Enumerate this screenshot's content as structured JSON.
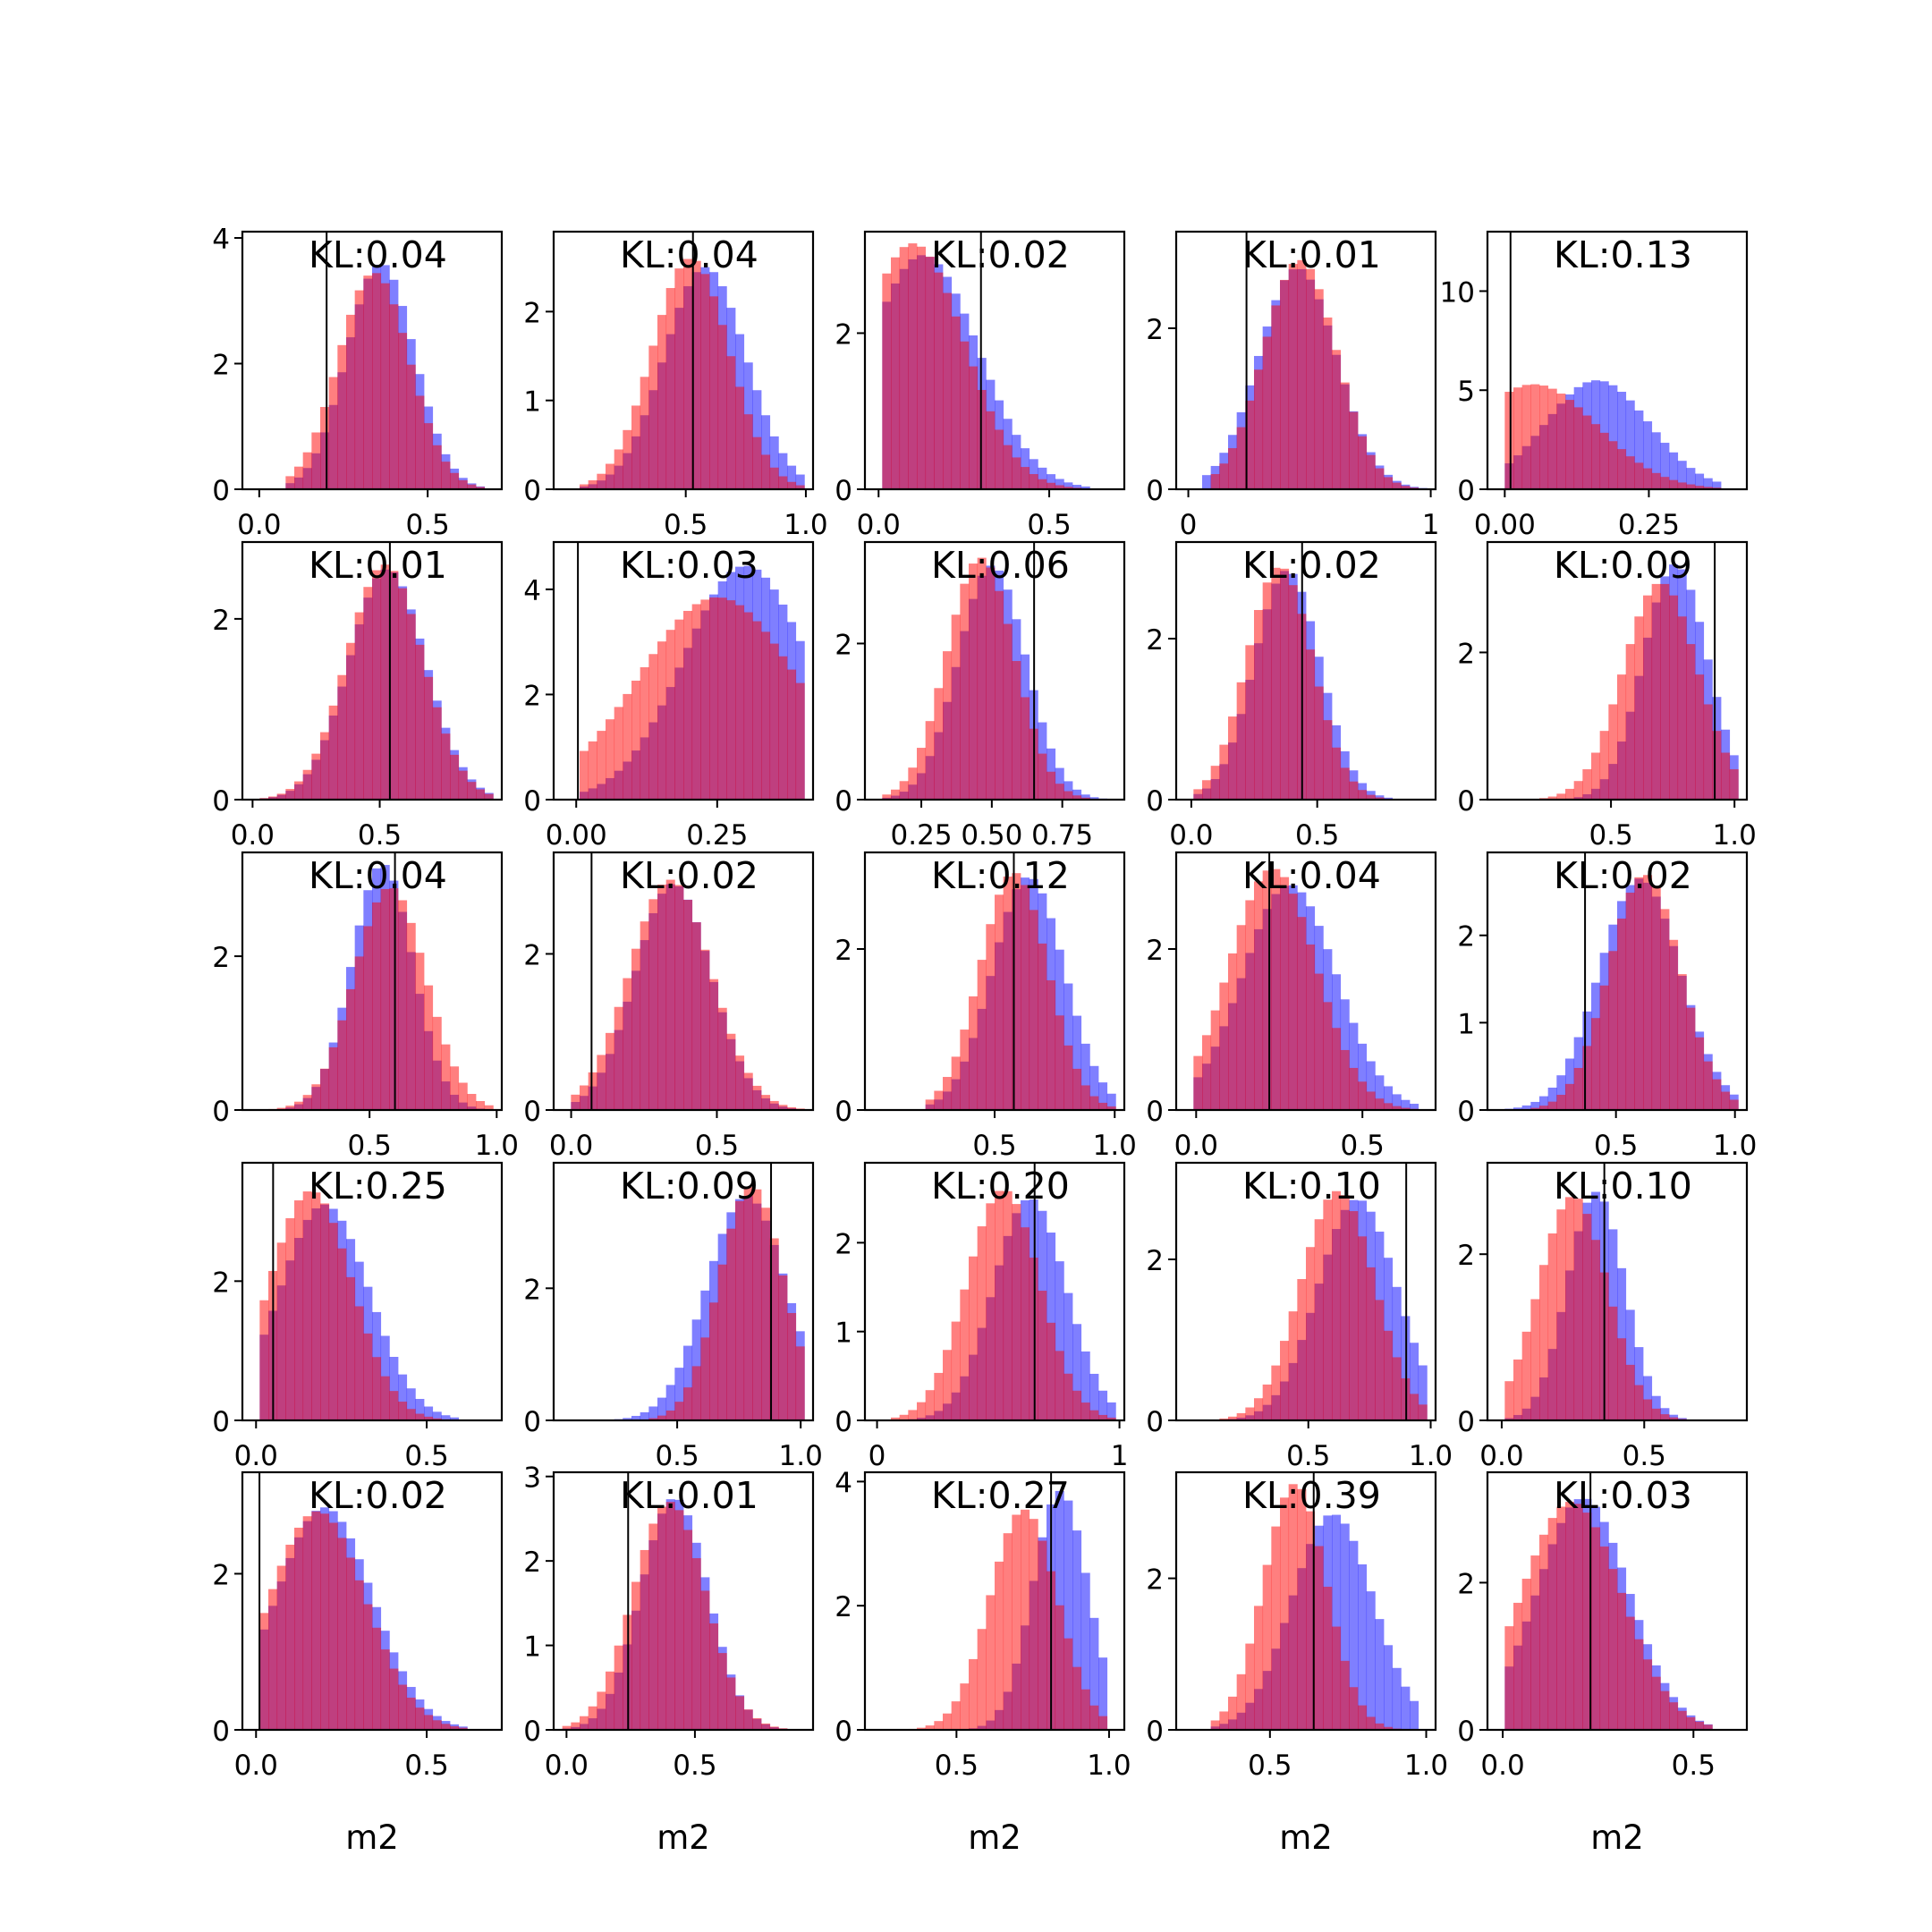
{
  "figure": {
    "background": "#ffffff"
  },
  "colors": {
    "blue": "#0000ff",
    "red": "#ff0000",
    "overlap": "#b0215a",
    "line": "#000000"
  },
  "chart_data": [
    {
      "type": "histogram",
      "kl_label": "KL:0.04",
      "xlim": [
        -0.05,
        0.72
      ],
      "ylim": [
        0,
        4.1
      ],
      "xticks": [
        0.0,
        0.5
      ],
      "xtick_labels": [
        "0.0",
        "0.5"
      ],
      "yticks": [
        0,
        2,
        4
      ],
      "ytick_labels": [
        "0",
        "2",
        "4"
      ],
      "vline": 0.2,
      "blue": {
        "mu": 0.36,
        "sigma": 0.1,
        "peak": 3.6,
        "lo": 0.08,
        "hi": 0.66
      },
      "red": {
        "mu": 0.34,
        "sigma": 0.105,
        "peak": 3.45,
        "lo": 0.08,
        "hi": 0.66
      }
    },
    {
      "type": "histogram",
      "kl_label": "KL:0.04",
      "xlim": [
        -0.05,
        1.03
      ],
      "ylim": [
        0,
        2.9
      ],
      "xticks": [
        0.5,
        1.0
      ],
      "xtick_labels": [
        "0.5",
        "1.0"
      ],
      "yticks": [
        0,
        1,
        2
      ],
      "ytick_labels": [
        "0",
        "1",
        "2"
      ],
      "vline": 0.53,
      "blue": {
        "mu": 0.58,
        "sigma": 0.17,
        "peak": 2.5,
        "lo": 0.05,
        "hi": 1.0
      },
      "red": {
        "mu": 0.52,
        "sigma": 0.16,
        "peak": 2.6,
        "lo": 0.05,
        "hi": 1.0
      }
    },
    {
      "type": "histogram",
      "kl_label": "KL:0.02",
      "xlim": [
        -0.04,
        0.72
      ],
      "ylim": [
        0,
        3.3
      ],
      "xticks": [
        0.0,
        0.5
      ],
      "xtick_labels": [
        "0.0",
        "0.5"
      ],
      "yticks": [
        0,
        2
      ],
      "ytick_labels": [
        "0",
        "2"
      ],
      "vline": 0.3,
      "blue": {
        "mu": 0.13,
        "sigma": 0.16,
        "peak": 3.0,
        "lo": 0.0,
        "hi": 0.62
      },
      "red": {
        "mu": 0.1,
        "sigma": 0.15,
        "peak": 3.15,
        "lo": 0.0,
        "hi": 0.62
      }
    },
    {
      "type": "histogram",
      "kl_label": "KL:0.01",
      "xlim": [
        -0.05,
        1.02
      ],
      "ylim": [
        0,
        3.2
      ],
      "xticks": [
        0.0,
        1.0
      ],
      "xtick_labels": [
        "0",
        "1"
      ],
      "yticks": [
        0,
        2
      ],
      "ytick_labels": [
        "0",
        "2"
      ],
      "vline": 0.24,
      "blue": {
        "mu": 0.45,
        "sigma": 0.16,
        "peak": 2.75,
        "lo": 0.05,
        "hi": 0.98
      },
      "red": {
        "mu": 0.46,
        "sigma": 0.15,
        "peak": 2.85,
        "lo": 0.1,
        "hi": 0.98
      }
    },
    {
      "type": "histogram",
      "kl_label": "KL:0.13",
      "xlim": [
        -0.03,
        0.42
      ],
      "ylim": [
        0,
        13
      ],
      "xticks": [
        0.0,
        0.25
      ],
      "xtick_labels": [
        "0.00",
        "0.25"
      ],
      "yticks": [
        0,
        5,
        10
      ],
      "ytick_labels": [
        "0",
        "5",
        "10"
      ],
      "vline": 0.01,
      "blue": {
        "mu": 0.16,
        "sigma": 0.09,
        "peak": 5.5,
        "lo": 0.0,
        "hi": 0.38
      },
      "red": {
        "mu": 0.05,
        "sigma": 0.11,
        "peak": 5.3,
        "lo": 0.0,
        "hi": 0.38
      }
    },
    {
      "type": "histogram",
      "kl_label": "KL:0.01",
      "xlim": [
        -0.04,
        0.98
      ],
      "ylim": [
        0,
        2.85
      ],
      "xticks": [
        0.0,
        0.5
      ],
      "xtick_labels": [
        "0.0",
        "0.5"
      ],
      "yticks": [
        0,
        2
      ],
      "ytick_labels": [
        "0",
        "2"
      ],
      "vline": 0.54,
      "blue": {
        "mu": 0.53,
        "sigma": 0.15,
        "peak": 2.55,
        "lo": 0.0,
        "hi": 0.95
      },
      "red": {
        "mu": 0.52,
        "sigma": 0.15,
        "peak": 2.6,
        "lo": 0.0,
        "hi": 0.95
      }
    },
    {
      "type": "histogram",
      "kl_label": "KL:0.03",
      "xlim": [
        -0.04,
        0.42
      ],
      "ylim": [
        0,
        4.9
      ],
      "xticks": [
        0.0,
        0.25
      ],
      "xtick_labels": [
        "0.00",
        "0.25"
      ],
      "yticks": [
        0,
        2,
        4
      ],
      "ytick_labels": [
        "0",
        "2",
        "4"
      ],
      "vline": 0.003,
      "blue": {
        "mu": 0.3,
        "sigma": 0.11,
        "peak": 4.45,
        "lo": 0.0,
        "hi": 0.4
      },
      "red": {
        "mu": 0.25,
        "sigma": 0.14,
        "peak": 3.85,
        "lo": 0.0,
        "hi": 0.4
      }
    },
    {
      "type": "histogram",
      "kl_label": "KL:0.06",
      "xlim": [
        0.05,
        0.97
      ],
      "ylim": [
        0,
        3.3
      ],
      "xticks": [
        0.25,
        0.5,
        0.75
      ],
      "xtick_labels": [
        "0.25",
        "0.50",
        "0.75"
      ],
      "yticks": [
        0,
        2
      ],
      "ytick_labels": [
        "0",
        "2"
      ],
      "vline": 0.65,
      "blue": {
        "mu": 0.5,
        "sigma": 0.12,
        "peak": 3.0,
        "lo": 0.1,
        "hi": 0.93
      },
      "red": {
        "mu": 0.46,
        "sigma": 0.12,
        "peak": 3.1,
        "lo": 0.1,
        "hi": 0.93
      }
    },
    {
      "type": "histogram",
      "kl_label": "KL:0.02",
      "xlim": [
        -0.06,
        0.97
      ],
      "ylim": [
        0,
        3.2
      ],
      "xticks": [
        0.0,
        0.5
      ],
      "xtick_labels": [
        "0.0",
        "0.5"
      ],
      "yticks": [
        0,
        2
      ],
      "ytick_labels": [
        "0",
        "2"
      ],
      "vline": 0.44,
      "blue": {
        "mu": 0.38,
        "sigma": 0.13,
        "peak": 2.85,
        "lo": 0.0,
        "hi": 0.95
      },
      "red": {
        "mu": 0.35,
        "sigma": 0.13,
        "peak": 2.9,
        "lo": 0.0,
        "hi": 0.95
      }
    },
    {
      "type": "histogram",
      "kl_label": "KL:0.09",
      "xlim": [
        0.0,
        1.05
      ],
      "ylim": [
        0,
        3.5
      ],
      "xticks": [
        0.5,
        1.0
      ],
      "xtick_labels": [
        "0.5",
        "1.0"
      ],
      "yticks": [
        0,
        2
      ],
      "ytick_labels": [
        "0",
        "2"
      ],
      "vline": 0.92,
      "blue": {
        "mu": 0.76,
        "sigma": 0.13,
        "peak": 3.2,
        "lo": 0.05,
        "hi": 1.0
      },
      "red": {
        "mu": 0.7,
        "sigma": 0.15,
        "peak": 2.95,
        "lo": 0.05,
        "hi": 1.0
      }
    },
    {
      "type": "histogram",
      "kl_label": "KL:0.04",
      "xlim": [
        0.0,
        1.02
      ],
      "ylim": [
        0,
        3.35
      ],
      "xticks": [
        0.5,
        1.0
      ],
      "xtick_labels": [
        "0.5",
        "1.0"
      ],
      "yticks": [
        0,
        2
      ],
      "ytick_labels": [
        "0",
        "2"
      ],
      "vline": 0.6,
      "blue": {
        "mu": 0.55,
        "sigma": 0.12,
        "peak": 3.2,
        "lo": 0.08,
        "hi": 0.98
      },
      "red": {
        "mu": 0.58,
        "sigma": 0.14,
        "peak": 2.9,
        "lo": 0.08,
        "hi": 0.98
      }
    },
    {
      "type": "histogram",
      "kl_label": "KL:0.02",
      "xlim": [
        -0.06,
        0.83
      ],
      "ylim": [
        0,
        3.3
      ],
      "xticks": [
        0.0,
        0.5
      ],
      "xtick_labels": [
        "0.0",
        "0.5"
      ],
      "yticks": [
        0,
        2
      ],
      "ytick_labels": [
        "0",
        "2"
      ],
      "vline": 0.07,
      "blue": {
        "mu": 0.35,
        "sigma": 0.13,
        "peak": 2.9,
        "lo": 0.0,
        "hi": 0.8
      },
      "red": {
        "mu": 0.34,
        "sigma": 0.14,
        "peak": 2.95,
        "lo": 0.0,
        "hi": 0.8
      }
    },
    {
      "type": "histogram",
      "kl_label": "KL:0.12",
      "xlim": [
        -0.04,
        1.04
      ],
      "ylim": [
        0,
        3.2
      ],
      "xticks": [
        0.5,
        1.0
      ],
      "xtick_labels": [
        "0.5",
        "1.0"
      ],
      "yticks": [
        0,
        2
      ],
      "ytick_labels": [
        "0",
        "2"
      ],
      "vline": 0.58,
      "blue": {
        "mu": 0.64,
        "sigma": 0.15,
        "peak": 2.9,
        "lo": 0.2,
        "hi": 1.0
      },
      "red": {
        "mu": 0.58,
        "sigma": 0.14,
        "peak": 2.95,
        "lo": 0.2,
        "hi": 1.0
      }
    },
    {
      "type": "histogram",
      "kl_label": "KL:0.04",
      "xlim": [
        -0.06,
        0.72
      ],
      "ylim": [
        0,
        3.2
      ],
      "xticks": [
        0.0,
        0.5
      ],
      "xtick_labels": [
        "0.0",
        "0.5"
      ],
      "yticks": [
        0,
        2
      ],
      "ytick_labels": [
        "0",
        "2"
      ],
      "vline": 0.22,
      "blue": {
        "mu": 0.28,
        "sigma": 0.14,
        "peak": 2.8,
        "lo": 0.0,
        "hi": 0.68
      },
      "red": {
        "mu": 0.23,
        "sigma": 0.13,
        "peak": 3.0,
        "lo": 0.0,
        "hi": 0.68
      }
    },
    {
      "type": "histogram",
      "kl_label": "KL:0.02",
      "xlim": [
        -0.04,
        1.05
      ],
      "ylim": [
        0,
        2.95
      ],
      "xticks": [
        0.5,
        1.0
      ],
      "xtick_labels": [
        "0.5",
        "1.0"
      ],
      "yticks": [
        0,
        1,
        2
      ],
      "ytick_labels": [
        "0",
        "1",
        "2"
      ],
      "vline": 0.37,
      "blue": {
        "mu": 0.6,
        "sigma": 0.17,
        "peak": 2.65,
        "lo": 0.0,
        "hi": 1.0
      },
      "red": {
        "mu": 0.62,
        "sigma": 0.15,
        "peak": 2.7,
        "lo": 0.0,
        "hi": 1.0
      }
    },
    {
      "type": "histogram",
      "kl_label": "KL:0.25",
      "xlim": [
        -0.04,
        0.72
      ],
      "ylim": [
        0,
        3.7
      ],
      "xticks": [
        0.0,
        0.5
      ],
      "xtick_labels": [
        "0.0",
        "0.5"
      ],
      "yticks": [
        0,
        2
      ],
      "ytick_labels": [
        "0",
        "2"
      ],
      "vline": 0.05,
      "blue": {
        "mu": 0.2,
        "sigma": 0.13,
        "peak": 3.1,
        "lo": 0.0,
        "hi": 0.6
      },
      "red": {
        "mu": 0.16,
        "sigma": 0.12,
        "peak": 3.3,
        "lo": 0.0,
        "hi": 0.6
      }
    },
    {
      "type": "histogram",
      "kl_label": "KL:0.09",
      "xlim": [
        0.0,
        1.05
      ],
      "ylim": [
        0,
        3.9
      ],
      "xticks": [
        0.5,
        1.0
      ],
      "xtick_labels": [
        "0.5",
        "1.0"
      ],
      "yticks": [
        0,
        2
      ],
      "ytick_labels": [
        "0",
        "2"
      ],
      "vline": 0.88,
      "blue": {
        "mu": 0.78,
        "sigma": 0.16,
        "peak": 3.4,
        "lo": 0.1,
        "hi": 1.0
      },
      "red": {
        "mu": 0.8,
        "sigma": 0.13,
        "peak": 3.55,
        "lo": 0.1,
        "hi": 1.0
      }
    },
    {
      "type": "histogram",
      "kl_label": "KL:0.20",
      "xlim": [
        -0.05,
        1.02
      ],
      "ylim": [
        0,
        2.9
      ],
      "xticks": [
        0.0,
        1.0
      ],
      "xtick_labels": [
        "0",
        "1"
      ],
      "yticks": [
        0,
        1,
        2
      ],
      "ytick_labels": [
        "0",
        "1",
        "2"
      ],
      "vline": 0.65,
      "blue": {
        "mu": 0.63,
        "sigma": 0.15,
        "peak": 2.5,
        "lo": 0.05,
        "hi": 0.98
      },
      "red": {
        "mu": 0.52,
        "sigma": 0.15,
        "peak": 2.6,
        "lo": 0.05,
        "hi": 0.98
      }
    },
    {
      "type": "histogram",
      "kl_label": "KL:0.10",
      "xlim": [
        -0.04,
        1.02
      ],
      "ylim": [
        0,
        3.2
      ],
      "xticks": [
        0.5,
        1.0
      ],
      "xtick_labels": [
        "0.5",
        "1.0"
      ],
      "yticks": [
        0,
        2
      ],
      "ytick_labels": [
        "0",
        "2"
      ],
      "vline": 0.9,
      "blue": {
        "mu": 0.7,
        "sigma": 0.16,
        "peak": 2.75,
        "lo": 0.0,
        "hi": 1.0
      },
      "red": {
        "mu": 0.62,
        "sigma": 0.15,
        "peak": 2.85,
        "lo": 0.0,
        "hi": 1.0
      }
    },
    {
      "type": "histogram",
      "kl_label": "KL:0.10",
      "xlim": [
        -0.05,
        0.86
      ],
      "ylim": [
        0,
        3.1
      ],
      "xticks": [
        0.0,
        0.5
      ],
      "xtick_labels": [
        "0.0",
        "0.5"
      ],
      "yticks": [
        0,
        2
      ],
      "ytick_labels": [
        "0",
        "2"
      ],
      "vline": 0.36,
      "blue": {
        "mu": 0.33,
        "sigma": 0.1,
        "peak": 2.75,
        "lo": 0.0,
        "hi": 0.75
      },
      "red": {
        "mu": 0.25,
        "sigma": 0.12,
        "peak": 2.7,
        "lo": 0.0,
        "hi": 0.75
      }
    },
    {
      "type": "histogram",
      "kl_label": "KL:0.02",
      "xlim": [
        -0.04,
        0.72
      ],
      "ylim": [
        0,
        3.3
      ],
      "xticks": [
        0.0,
        0.5
      ],
      "xtick_labels": [
        "0.0",
        "0.5"
      ],
      "yticks": [
        0,
        2
      ],
      "ytick_labels": [
        "0",
        "2"
      ],
      "vline": 0.01,
      "blue": {
        "mu": 0.2,
        "sigma": 0.14,
        "peak": 2.85,
        "lo": 0.0,
        "hi": 0.62
      },
      "red": {
        "mu": 0.18,
        "sigma": 0.14,
        "peak": 2.8,
        "lo": 0.0,
        "hi": 0.62
      }
    },
    {
      "type": "histogram",
      "kl_label": "KL:0.01",
      "xlim": [
        -0.05,
        0.96
      ],
      "ylim": [
        0,
        3.05
      ],
      "xticks": [
        0.0,
        0.5
      ],
      "xtick_labels": [
        "0.0",
        "0.5"
      ],
      "yticks": [
        0,
        1,
        2,
        3
      ],
      "ytick_labels": [
        "0",
        "1",
        "2",
        "3"
      ],
      "vline": 0.24,
      "blue": {
        "mu": 0.42,
        "sigma": 0.13,
        "peak": 2.75,
        "lo": 0.0,
        "hi": 0.9
      },
      "red": {
        "mu": 0.4,
        "sigma": 0.14,
        "peak": 2.7,
        "lo": 0.0,
        "hi": 0.9
      }
    },
    {
      "type": "histogram",
      "kl_label": "KL:0.27",
      "xlim": [
        0.2,
        1.05
      ],
      "ylim": [
        0,
        4.15
      ],
      "xticks": [
        0.5,
        1.0
      ],
      "xtick_labels": [
        "0.5",
        "1.0"
      ],
      "yticks": [
        0,
        2,
        4
      ],
      "ytick_labels": [
        "0",
        "2",
        "4"
      ],
      "vline": 0.81,
      "blue": {
        "mu": 0.84,
        "sigma": 0.09,
        "peak": 3.85,
        "lo": 0.3,
        "hi": 1.0
      },
      "red": {
        "mu": 0.72,
        "sigma": 0.11,
        "peak": 3.55,
        "lo": 0.3,
        "hi": 1.0
      }
    },
    {
      "type": "histogram",
      "kl_label": "KL:0.39",
      "xlim": [
        0.2,
        1.03
      ],
      "ylim": [
        0,
        3.4
      ],
      "xticks": [
        0.5,
        1.0
      ],
      "xtick_labels": [
        "0.5",
        "1.0"
      ],
      "yticks": [
        0,
        2
      ],
      "ytick_labels": [
        "0",
        "2"
      ],
      "vline": 0.64,
      "blue": {
        "mu": 0.7,
        "sigma": 0.13,
        "peak": 2.85,
        "lo": 0.3,
        "hi": 0.98
      },
      "red": {
        "mu": 0.58,
        "sigma": 0.1,
        "peak": 3.25,
        "lo": 0.3,
        "hi": 0.98
      }
    },
    {
      "type": "histogram",
      "kl_label": "KL:0.03",
      "xlim": [
        -0.04,
        0.64
      ],
      "ylim": [
        0,
        3.5
      ],
      "xticks": [
        0.0,
        0.5
      ],
      "xtick_labels": [
        "0.0",
        "0.5"
      ],
      "yticks": [
        0,
        2
      ],
      "ytick_labels": [
        "0",
        "2"
      ],
      "vline": 0.23,
      "blue": {
        "mu": 0.21,
        "sigma": 0.12,
        "peak": 3.15,
        "lo": 0.0,
        "hi": 0.55
      },
      "red": {
        "mu": 0.18,
        "sigma": 0.13,
        "peak": 3.1,
        "lo": 0.0,
        "hi": 0.55
      }
    }
  ],
  "xlabels": [
    "m2",
    "m2",
    "m2",
    "m2",
    "m2"
  ]
}
